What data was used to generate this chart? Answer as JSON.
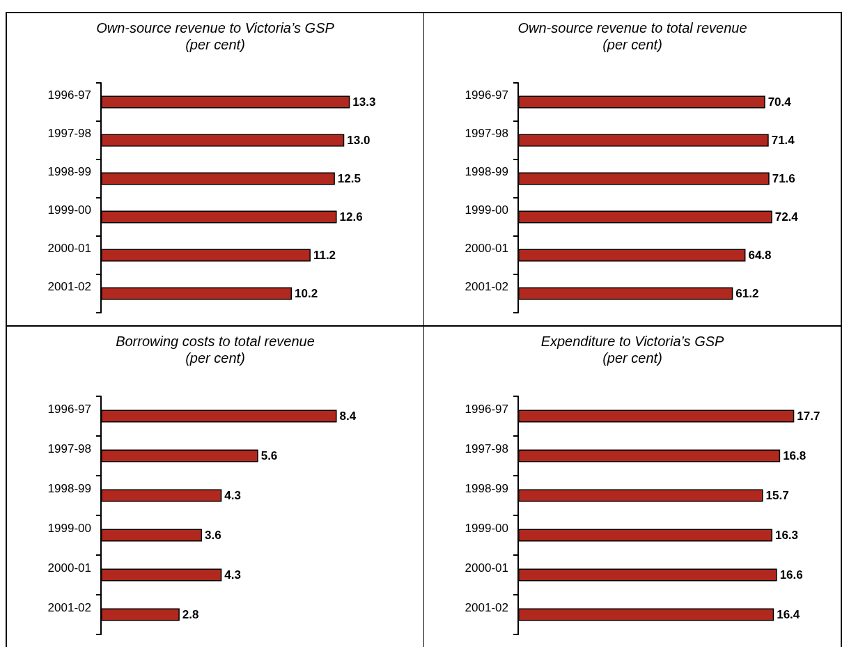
{
  "chart_data": [
    {
      "type": "bar",
      "orientation": "horizontal",
      "title": "Own-source revenue to Victoria’s GSP",
      "subtitle": "(per cent)",
      "categories": [
        "1996-97",
        "1997-98",
        "1998-99",
        "1999-00",
        "2000-01",
        "2001-02"
      ],
      "values": [
        13.3,
        13.0,
        12.5,
        12.6,
        11.2,
        10.2
      ],
      "value_labels": [
        "13.3",
        "13.0",
        "12.5",
        "12.6",
        "11.2",
        "10.2"
      ],
      "color": "#b0281e",
      "tick_labels": "y"
    },
    {
      "type": "bar",
      "orientation": "horizontal",
      "title": "Own-source revenue to total revenue",
      "subtitle": "(per cent)",
      "categories": [
        "1996-97",
        "1997-98",
        "1998-99",
        "1999-00",
        "2000-01",
        "2001-02"
      ],
      "values": [
        70.4,
        71.4,
        71.6,
        72.4,
        64.8,
        61.2
      ],
      "value_labels": [
        "70.4",
        "71.4",
        "71.6",
        "72.4",
        "64.8",
        "61.2"
      ],
      "color": "#b0281e",
      "tick_labels": "y"
    },
    {
      "type": "bar",
      "orientation": "horizontal",
      "title": "Borrowing costs to total revenue",
      "subtitle": "(per cent)",
      "categories": [
        "1996-97",
        "1997-98",
        "1998-99",
        "1999-00",
        "2000-01",
        "2001-02"
      ],
      "values": [
        8.4,
        5.6,
        4.3,
        3.6,
        4.3,
        2.8
      ],
      "value_labels": [
        "8.4",
        "5.6",
        "4.3",
        "3.6",
        "4.3",
        "2.8"
      ],
      "color": "#b0281e",
      "tick_labels": "y"
    },
    {
      "type": "bar",
      "orientation": "horizontal",
      "title": "Expenditure to Victoria’s GSP",
      "subtitle": "(per cent)",
      "categories": [
        "1996-97",
        "1997-98",
        "1998-99",
        "1999-00",
        "2000-01",
        "2001-02"
      ],
      "values": [
        17.7,
        16.8,
        15.7,
        16.3,
        16.6,
        16.4
      ],
      "value_labels": [
        "17.7",
        "16.8",
        "15.7",
        "16.3",
        "16.6",
        "16.4"
      ],
      "color": "#b0281e",
      "tick_labels": "y"
    }
  ]
}
